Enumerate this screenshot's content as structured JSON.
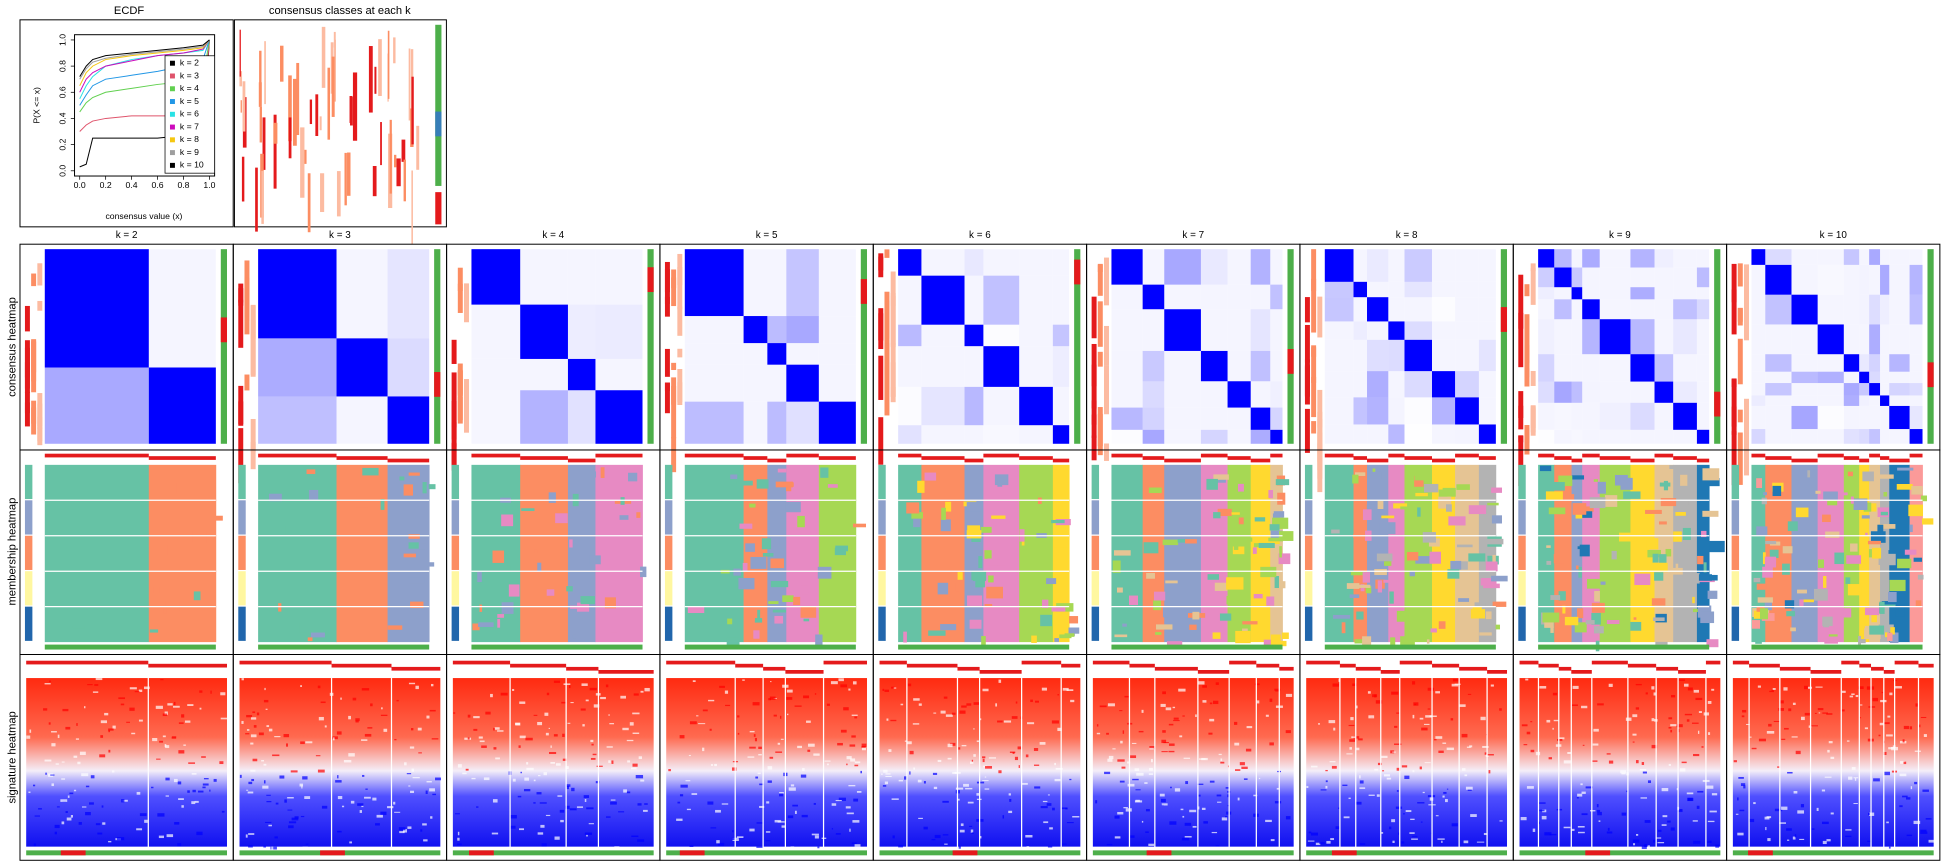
{
  "chart_data": {
    "type": "line",
    "title": "ECDF",
    "x_label": "consensus value (x)",
    "y_label": "P(X <= x)",
    "x": [
      0,
      0.05,
      0.1,
      0.2,
      0.4,
      0.6,
      0.8,
      0.95,
      1.0
    ],
    "series": [
      {
        "name": "k = 2",
        "color": "#000000",
        "values": [
          0.03,
          0.05,
          0.25,
          0.25,
          0.25,
          0.25,
          0.27,
          0.28,
          1.0
        ]
      },
      {
        "name": "k = 3",
        "color": "#DF536B",
        "values": [
          0.3,
          0.35,
          0.38,
          0.4,
          0.42,
          0.42,
          0.42,
          0.43,
          1.0
        ]
      },
      {
        "name": "k = 4",
        "color": "#61D04F",
        "values": [
          0.45,
          0.52,
          0.56,
          0.6,
          0.63,
          0.66,
          0.68,
          0.7,
          1.0
        ]
      },
      {
        "name": "k = 5",
        "color": "#2297E6",
        "values": [
          0.5,
          0.58,
          0.65,
          0.7,
          0.73,
          0.76,
          0.8,
          0.85,
          1.0
        ]
      },
      {
        "name": "k = 6",
        "color": "#28E2E5",
        "values": [
          0.55,
          0.65,
          0.72,
          0.8,
          0.85,
          0.88,
          0.9,
          0.92,
          1.0
        ]
      },
      {
        "name": "k = 7",
        "color": "#CD0BBC",
        "values": [
          0.6,
          0.7,
          0.75,
          0.8,
          0.84,
          0.88,
          0.9,
          0.93,
          1.0
        ]
      },
      {
        "name": "k = 8",
        "color": "#F5C710",
        "values": [
          0.65,
          0.75,
          0.8,
          0.85,
          0.88,
          0.9,
          0.92,
          0.94,
          1.0
        ]
      },
      {
        "name": "k = 9",
        "color": "#9E9E9E",
        "values": [
          0.7,
          0.78,
          0.83,
          0.86,
          0.89,
          0.91,
          0.93,
          0.95,
          1.0
        ]
      },
      {
        "name": "k = 10",
        "color": "#000000",
        "values": [
          0.72,
          0.8,
          0.85,
          0.88,
          0.9,
          0.92,
          0.94,
          0.96,
          1.0
        ]
      }
    ],
    "xlim": [
      -0.04,
      1.04
    ],
    "ylim": [
      -0.04,
      1.04
    ],
    "xticks": [
      {
        "value": 0,
        "label": "0.0"
      },
      {
        "value": 0.2,
        "label": "0.2"
      },
      {
        "value": 0.4,
        "label": "0.4"
      },
      {
        "value": 0.6,
        "label": "0.6"
      },
      {
        "value": 0.8,
        "label": "0.8"
      },
      {
        "value": 1,
        "label": "1.0"
      }
    ],
    "yticks": [
      {
        "value": 0,
        "label": "0.0"
      },
      {
        "value": 0.2,
        "label": "0.2"
      },
      {
        "value": 0.4,
        "label": "0.4"
      },
      {
        "value": 0.6,
        "label": "0.6"
      },
      {
        "value": 0.8,
        "label": "0.8"
      },
      {
        "value": 1,
        "label": "1.0"
      }
    ],
    "legend": "right"
  },
  "classes_panel": {
    "title": "consensus classes at each k"
  },
  "columns": [
    "k = 2",
    "k = 3",
    "k = 4",
    "k = 5",
    "k = 6",
    "k = 7",
    "k = 8",
    "k = 9",
    "k = 10"
  ],
  "row_labels": [
    "consensus heatmap",
    "membership heatmap",
    "signature heatmap"
  ]
}
